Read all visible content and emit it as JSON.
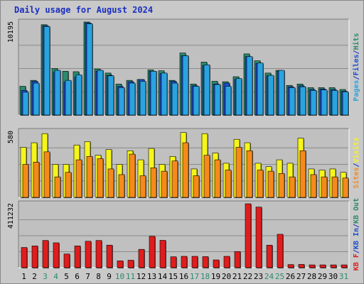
{
  "title": "Daily usage for August 2024",
  "colors": {
    "pages": "#2aa3e0",
    "files": "#1a4fd0",
    "hits": "#2b8a6e",
    "visits": "#f5f51c",
    "sites": "#f58a1c",
    "kb_in": "#1a4fd0",
    "kb_out": "#2b8a6e",
    "kb_f": "#e01c1c",
    "panel_bg": "#c0c0c0",
    "title": "#1a2ec0"
  },
  "chart_data": [
    {
      "type": "bar",
      "categories": [
        "1",
        "2",
        "3",
        "4",
        "5",
        "6",
        "7",
        "8",
        "9",
        "10",
        "11",
        "12",
        "13",
        "14",
        "15",
        "16",
        "17",
        "18",
        "19",
        "20",
        "21",
        "22",
        "23",
        "24",
        "25",
        "26",
        "27",
        "28",
        "29",
        "30",
        "31"
      ],
      "weekend_days": [
        "3",
        "4",
        "10",
        "11",
        "17",
        "18",
        "24",
        "25",
        "31"
      ],
      "ylim": [
        0,
        10195
      ],
      "y_tick_label": "10195",
      "right_axis_labels": [
        "Pages",
        "/",
        "Files",
        "/",
        "Hits"
      ],
      "series": [
        {
          "name": "Hits",
          "values": [
            3150,
            3800,
            9900,
            5100,
            4800,
            4750,
            10195,
            5050,
            4600,
            3400,
            3800,
            3900,
            4950,
            4850,
            3800,
            6800,
            3400,
            5800,
            3700,
            3650,
            4200,
            6700,
            5950,
            4600,
            4900,
            3250,
            3400,
            3000,
            3000,
            3000,
            2800
          ]
        },
        {
          "name": "Files",
          "values": [
            2700,
            3700,
            9800,
            4700,
            3600,
            4150,
            10100,
            4800,
            4350,
            3150,
            3650,
            3900,
            4800,
            4550,
            3700,
            6500,
            3200,
            5400,
            3400,
            3500,
            3900,
            6400,
            5650,
            4300,
            4800,
            3100,
            3200,
            2800,
            2850,
            2800,
            2600
          ]
        },
        {
          "name": "Pages",
          "values": [
            2500,
            3500,
            9700,
            4900,
            3800,
            4400,
            10000,
            4900,
            4300,
            3000,
            3500,
            3700,
            4800,
            4600,
            3500,
            6500,
            3150,
            5500,
            3350,
            3150,
            4000,
            6400,
            5700,
            4350,
            4900,
            3000,
            3100,
            2700,
            2750,
            2700,
            2550
          ]
        }
      ]
    },
    {
      "type": "bar",
      "categories": [
        "1",
        "2",
        "3",
        "4",
        "5",
        "6",
        "7",
        "8",
        "9",
        "10",
        "11",
        "12",
        "13",
        "14",
        "15",
        "16",
        "17",
        "18",
        "19",
        "20",
        "21",
        "22",
        "23",
        "24",
        "25",
        "26",
        "27",
        "28",
        "29",
        "30",
        "31"
      ],
      "ylim": [
        0,
        580
      ],
      "y_tick_label": "580",
      "right_axis_labels": [
        "Sites",
        "/",
        "Visits"
      ],
      "series": [
        {
          "name": "Visits",
          "values": [
            440,
            480,
            560,
            290,
            290,
            460,
            490,
            370,
            420,
            290,
            410,
            330,
            430,
            290,
            360,
            570,
            250,
            560,
            390,
            300,
            510,
            480,
            300,
            270,
            330,
            300,
            520,
            250,
            240,
            250,
            220
          ]
        },
        {
          "name": "Sites",
          "values": [
            290,
            310,
            400,
            180,
            220,
            330,
            360,
            340,
            250,
            200,
            380,
            190,
            260,
            230,
            320,
            480,
            190,
            370,
            330,
            240,
            440,
            410,
            240,
            230,
            210,
            180,
            410,
            200,
            180,
            180,
            170
          ]
        }
      ]
    },
    {
      "type": "bar",
      "categories": [
        "1",
        "2",
        "3",
        "4",
        "5",
        "6",
        "7",
        "8",
        "9",
        "10",
        "11",
        "12",
        "13",
        "14",
        "15",
        "16",
        "17",
        "18",
        "19",
        "20",
        "21",
        "22",
        "23",
        "24",
        "25",
        "26",
        "27",
        "28",
        "29",
        "30",
        "31"
      ],
      "ylim": [
        0,
        411232
      ],
      "y_tick_label": "411232",
      "right_axis_labels": [
        "KB F",
        "/",
        "KB In",
        "/",
        "KB Out"
      ],
      "series": [
        {
          "name": "KB F",
          "values": [
            130000,
            140000,
            175000,
            160000,
            88000,
            140000,
            170000,
            175000,
            145000,
            44000,
            48000,
            118000,
            202000,
            176000,
            70000,
            73000,
            73000,
            71000,
            50000,
            73000,
            104000,
            411232,
            390000,
            145000,
            215000,
            20000,
            21000,
            18000,
            18000,
            18000,
            18000
          ]
        },
        {
          "name": "KB In",
          "values": [
            0,
            0,
            0,
            0,
            0,
            0,
            0,
            0,
            0,
            0,
            0,
            0,
            0,
            0,
            0,
            0,
            0,
            0,
            0,
            0,
            0,
            0,
            0,
            0,
            0,
            0,
            0,
            0,
            0,
            0,
            0
          ]
        },
        {
          "name": "KB Out",
          "values": [
            0,
            0,
            0,
            0,
            0,
            0,
            0,
            0,
            0,
            0,
            0,
            0,
            0,
            0,
            0,
            0,
            0,
            0,
            0,
            0,
            0,
            0,
            0,
            0,
            0,
            0,
            0,
            0,
            0,
            0,
            0
          ]
        }
      ]
    }
  ]
}
